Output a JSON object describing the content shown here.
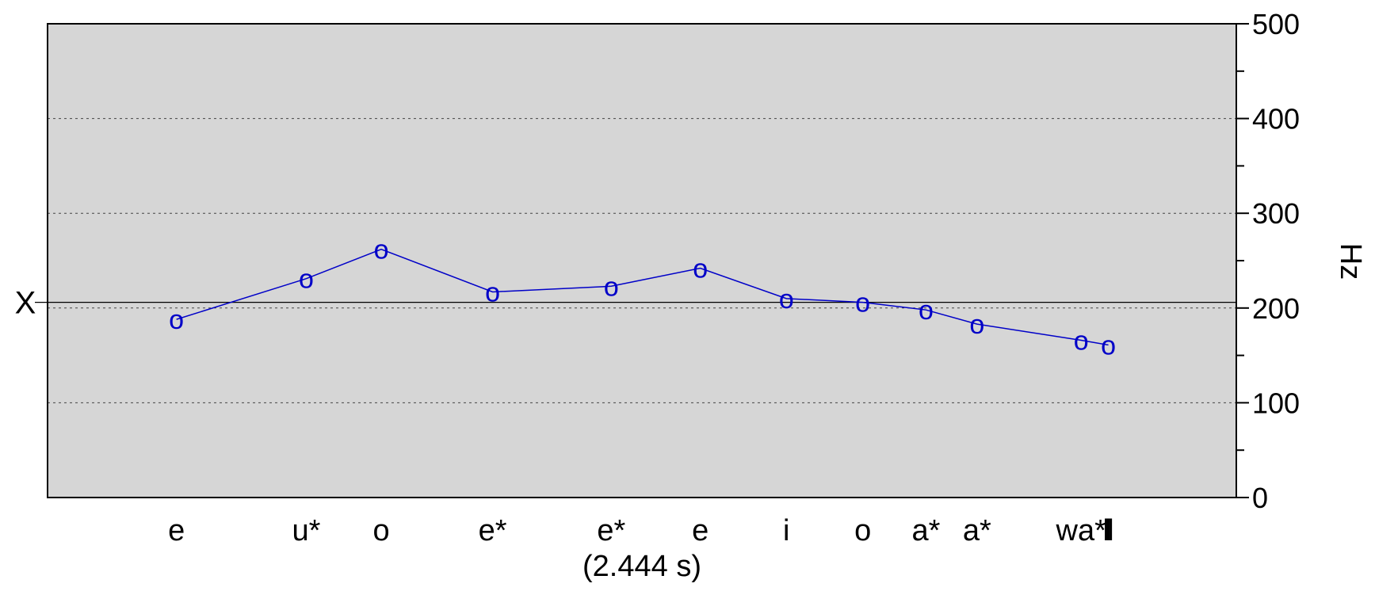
{
  "chart_data": {
    "type": "line",
    "xlabel": "(2.444 s)",
    "ylabel": "Hz",
    "ylim": [
      0,
      500
    ],
    "yticks": [
      0,
      100,
      200,
      300,
      400,
      500
    ],
    "y_minor_step": 50,
    "grid": true,
    "grid_values": [
      100,
      200,
      300,
      400
    ],
    "xlim": [
      0,
      2.444
    ],
    "reference": {
      "label": "X",
      "value": 206
    },
    "x": [
      0.265,
      0.532,
      0.686,
      0.915,
      1.159,
      1.342,
      1.519,
      1.676,
      1.806,
      1.911,
      2.125,
      2.181
    ],
    "categories": [
      "e",
      "u*",
      "o",
      "e*",
      "e*",
      "e",
      "i",
      "o",
      "a*",
      "a*",
      "wa*",
      "l"
    ],
    "values": [
      188,
      231,
      262,
      217,
      223,
      242,
      210,
      206,
      198,
      183,
      166,
      161
    ],
    "marker": "o",
    "end_marker": "‖",
    "colors": {
      "series": "#0000c8",
      "plot_bg": "#d6d6d6",
      "grid": "#444444"
    }
  }
}
